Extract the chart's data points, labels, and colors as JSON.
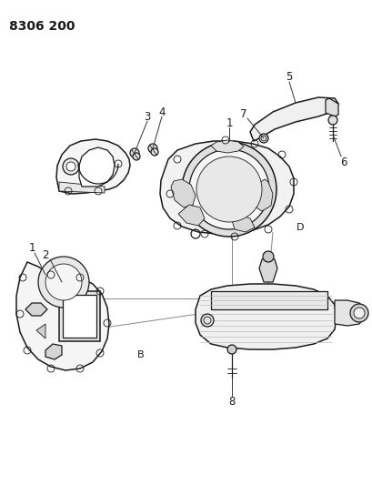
{
  "title_code": "8306 200",
  "background_color": "#ffffff",
  "line_color": "#1a1a1a",
  "fig_width": 4.1,
  "fig_height": 5.33,
  "dpi": 100,
  "lw_main": 0.9,
  "lw_thin": 0.6,
  "lw_thick": 1.1
}
